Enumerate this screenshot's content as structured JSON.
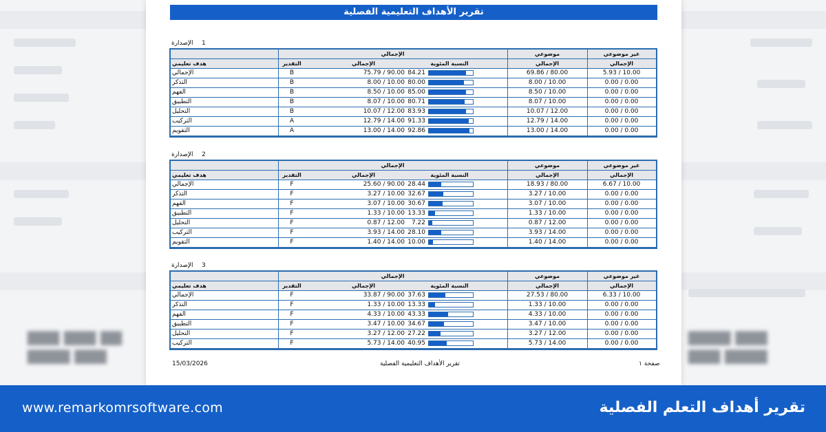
{
  "report_title": "تقرير الأهداف التعليمية الفصلية",
  "headers": {
    "outcome": "هدف تعليمي",
    "rating": "التقدير",
    "total": "الإجمالي",
    "percent": "النسبة المئوية",
    "objective": "موضوعي",
    "non_objective": "غير موضوعي"
  },
  "release_label": "الإصدارة",
  "releases": [
    {
      "number": "1",
      "rows": [
        {
          "name": "الإجمالي",
          "rating": "B",
          "total": "75.79 / 90.00",
          "pct": "84.21",
          "pct_value": 84.21,
          "obj": "69.86 / 80.00",
          "nonobj": "5.93 / 10.00"
        },
        {
          "name": "التذكر",
          "rating": "B",
          "total": "8.00 / 10.00",
          "pct": "80.00",
          "pct_value": 80.0,
          "obj": "8.00 / 10.00",
          "nonobj": "0.00 / 0.00"
        },
        {
          "name": "الفهم",
          "rating": "B",
          "total": "8.50 / 10.00",
          "pct": "85.00",
          "pct_value": 85.0,
          "obj": "8.50 / 10.00",
          "nonobj": "0.00 / 0.00"
        },
        {
          "name": "التطبيق",
          "rating": "B",
          "total": "8.07 / 10.00",
          "pct": "80.71",
          "pct_value": 80.71,
          "obj": "8.07 / 10.00",
          "nonobj": "0.00 / 0.00"
        },
        {
          "name": "التحليل",
          "rating": "B",
          "total": "10.07 / 12.00",
          "pct": "83.93",
          "pct_value": 83.93,
          "obj": "10.07 / 12.00",
          "nonobj": "0.00 / 0.00"
        },
        {
          "name": "التركيب",
          "rating": "A",
          "total": "12.79 / 14.00",
          "pct": "91.33",
          "pct_value": 91.33,
          "obj": "12.79 / 14.00",
          "nonobj": "0.00 / 0.00"
        },
        {
          "name": "التقويم",
          "rating": "A",
          "total": "13.00 / 14.00",
          "pct": "92.86",
          "pct_value": 92.86,
          "obj": "13.00 / 14.00",
          "nonobj": "0.00 / 0.00"
        }
      ]
    },
    {
      "number": "2",
      "rows": [
        {
          "name": "الإجمالي",
          "rating": "F",
          "total": "25.60 / 90.00",
          "pct": "28.44",
          "pct_value": 28.44,
          "obj": "18.93 / 80.00",
          "nonobj": "6.67 / 10.00"
        },
        {
          "name": "التذكر",
          "rating": "F",
          "total": "3.27 / 10.00",
          "pct": "32.67",
          "pct_value": 32.67,
          "obj": "3.27 / 10.00",
          "nonobj": "0.00 / 0.00"
        },
        {
          "name": "الفهم",
          "rating": "F",
          "total": "3.07 / 10.00",
          "pct": "30.67",
          "pct_value": 30.67,
          "obj": "3.07 / 10.00",
          "nonobj": "0.00 / 0.00"
        },
        {
          "name": "التطبيق",
          "rating": "F",
          "total": "1.33 / 10.00",
          "pct": "13.33",
          "pct_value": 13.33,
          "obj": "1.33 / 10.00",
          "nonobj": "0.00 / 0.00"
        },
        {
          "name": "التحليل",
          "rating": "F",
          "total": "0.87 / 12.00",
          "pct": "7.22",
          "pct_value": 7.22,
          "obj": "0.87 / 12.00",
          "nonobj": "0.00 / 0.00"
        },
        {
          "name": "التركيب",
          "rating": "F",
          "total": "3.93 / 14.00",
          "pct": "28.10",
          "pct_value": 28.1,
          "obj": "3.93 / 14.00",
          "nonobj": "0.00 / 0.00"
        },
        {
          "name": "التقويم",
          "rating": "F",
          "total": "1.40 / 14.00",
          "pct": "10.00",
          "pct_value": 10.0,
          "obj": "1.40 / 14.00",
          "nonobj": "0.00 / 0.00"
        }
      ]
    },
    {
      "number": "3",
      "rows": [
        {
          "name": "الإجمالي",
          "rating": "F",
          "total": "33.87 / 90.00",
          "pct": "37.63",
          "pct_value": 37.63,
          "obj": "27.53 / 80.00",
          "nonobj": "6.33 / 10.00"
        },
        {
          "name": "التذكر",
          "rating": "F",
          "total": "1.33 / 10.00",
          "pct": "13.33",
          "pct_value": 13.33,
          "obj": "1.33 / 10.00",
          "nonobj": "0.00 / 0.00"
        },
        {
          "name": "الفهم",
          "rating": "F",
          "total": "4.33 / 10.00",
          "pct": "43.33",
          "pct_value": 43.33,
          "obj": "4.33 / 10.00",
          "nonobj": "0.00 / 0.00"
        },
        {
          "name": "التطبيق",
          "rating": "F",
          "total": "3.47 / 10.00",
          "pct": "34.67",
          "pct_value": 34.67,
          "obj": "3.47 / 10.00",
          "nonobj": "0.00 / 0.00"
        },
        {
          "name": "التحليل",
          "rating": "F",
          "total": "3.27 / 12.00",
          "pct": "27.22",
          "pct_value": 27.22,
          "obj": "3.27 / 12.00",
          "nonobj": "0.00 / 0.00"
        },
        {
          "name": "التركيب",
          "rating": "F",
          "total": "5.73 / 14.00",
          "pct": "40.95",
          "pct_value": 40.95,
          "obj": "5.73 / 14.00",
          "nonobj": "0.00 / 0.00"
        }
      ]
    }
  ],
  "footer": {
    "date": "15/03/2026",
    "center": "تقرير الأهداف التعليمية الفصلية",
    "page": "صفحة ١"
  },
  "banner": {
    "website": "www.remarkomrsoftware.com",
    "title": "تقرير أهداف التعلم الفصلية"
  },
  "colors": {
    "accent": "#1560c8",
    "border": "#2b6cb0",
    "header_bg": "#e4e6ea"
  }
}
